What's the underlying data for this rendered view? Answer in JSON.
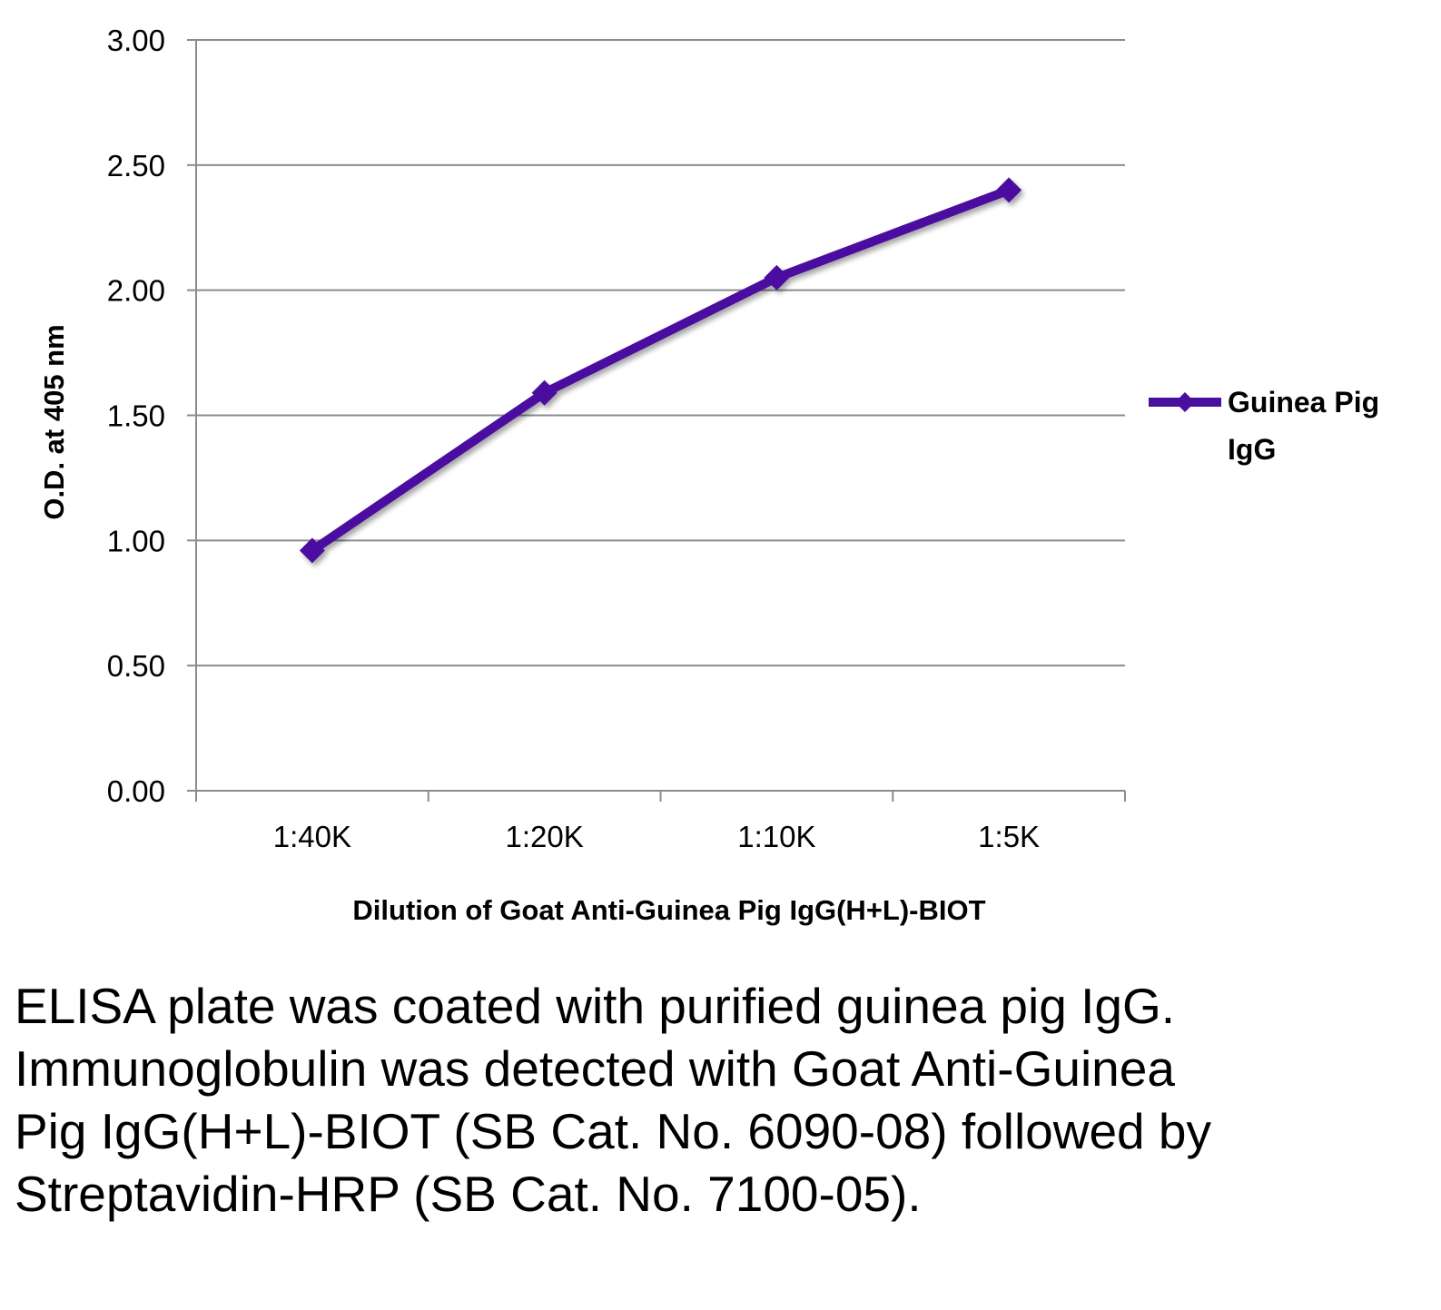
{
  "chart_data": {
    "type": "line",
    "title": "",
    "xlabel": "Dilution of Goat Anti-Guinea Pig IgG(H+L)-BIOT",
    "ylabel": "O.D. at 405 nm",
    "categories": [
      "1:40K",
      "1:20K",
      "1:10K",
      "1:5K"
    ],
    "series": [
      {
        "name": "Guinea Pig IgG",
        "values": [
          0.96,
          1.59,
          2.05,
          2.4
        ],
        "color": "#4b0fa0",
        "marker": "diamond"
      }
    ],
    "ylim": [
      0,
      3
    ],
    "yticks": [
      "0.00",
      "0.50",
      "1.00",
      "1.50",
      "2.00",
      "2.50",
      "3.00"
    ],
    "grid": true,
    "legend": {
      "placement": "right",
      "lines": [
        "Guinea Pig",
        "IgG"
      ]
    }
  },
  "caption": "ELISA plate was coated with purified guinea pig IgG.  Immunoglobulin was detected with Goat Anti-Guinea Pig IgG(H+L)-BIOT (SB Cat. No. 6090-08) followed by Streptavidin-HRP (SB Cat. No. 7100-05)."
}
